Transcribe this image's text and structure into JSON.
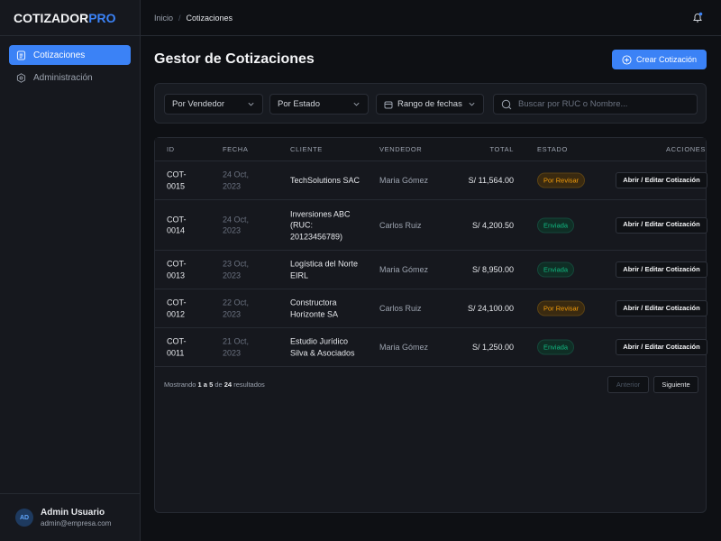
{
  "brand": {
    "main": "COTIZADOR",
    "accent": "PRO"
  },
  "sidebar": {
    "items": [
      {
        "label": "Cotizaciones",
        "icon": "document-icon",
        "active": true
      },
      {
        "label": "Administración",
        "icon": "gear-icon",
        "active": false
      }
    ]
  },
  "user": {
    "initials": "AD",
    "name": "Admin Usuario",
    "email": "admin@empresa.com"
  },
  "breadcrumb": {
    "home": "Inicio",
    "separator": "/",
    "current": "Cotizaciones"
  },
  "page": {
    "title": "Gestor de Cotizaciones",
    "create_label": "Crear Cotización"
  },
  "filters": {
    "vendor": "Por Vendedor",
    "status": "Por Estado",
    "dates": "Rango de fechas",
    "search_placeholder": "Buscar por RUC o Nombre..."
  },
  "table": {
    "headers": [
      "ID",
      "FECHA",
      "CLIENTE",
      "VENDEDOR",
      "TOTAL",
      "ESTADO",
      "ACCIONES"
    ],
    "rows": [
      {
        "id": "COT-0015",
        "date": "24 Oct, 2023",
        "client": "TechSolutions SAC",
        "vendor": "Maria Gómez",
        "total": "S/ 11,564.00",
        "status": "Por Revisar",
        "action": "Abrir / Editar Cotización"
      },
      {
        "id": "COT-0014",
        "date": "24 Oct, 2023",
        "client": "Inversiones ABC (RUC: 20123456789)",
        "vendor": "Carlos Ruiz",
        "total": "S/ 4,200.50",
        "status": "Enviada",
        "action": "Abrir / Editar Cotización"
      },
      {
        "id": "COT-0013",
        "date": "23 Oct, 2023",
        "client": "Logística del Norte EIRL",
        "vendor": "Maria Gómez",
        "total": "S/ 8,950.00",
        "status": "Enviada",
        "action": "Abrir / Editar Cotización"
      },
      {
        "id": "COT-0012",
        "date": "22 Oct, 2023",
        "client": "Constructora Horizonte SA",
        "vendor": "Carlos Ruiz",
        "total": "S/ 24,100.00",
        "status": "Por Revisar",
        "action": "Abrir / Editar Cotización"
      },
      {
        "id": "COT-0011",
        "date": "21 Oct, 2023",
        "client": "Estudio Jurídico Silva & Asociados",
        "vendor": "Maria Gómez",
        "total": "S/ 1,250.00",
        "status": "Enviada",
        "action": "Abrir / Editar Cotización"
      }
    ]
  },
  "pagination": {
    "prefix": "Mostrando",
    "from": "1",
    "to_word": "a",
    "to": "5",
    "of_word": "de",
    "total": "24",
    "suffix": "resultados",
    "prev": "Anterior",
    "next": "Siguiente"
  },
  "colors": {
    "accent": "#3b82f6",
    "review": "#f59e0b",
    "sent": "#10b981"
  }
}
